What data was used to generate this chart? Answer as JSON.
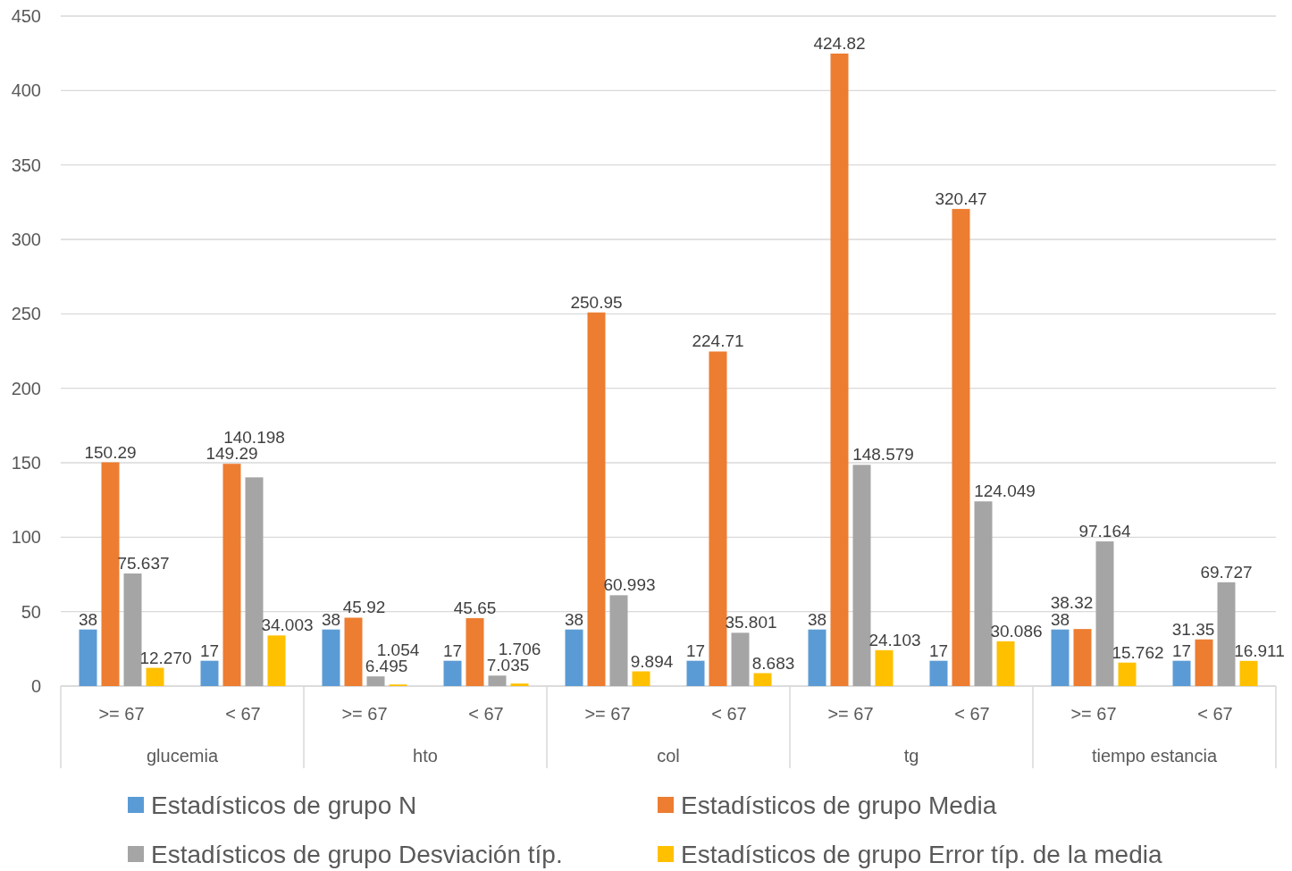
{
  "chart_data": {
    "type": "bar",
    "categories": [
      ">= 67",
      "< 67",
      ">= 67",
      "< 67",
      ">= 67",
      "< 67",
      ">= 67",
      "< 67",
      ">= 67",
      "< 67"
    ],
    "annotations": [
      "glucemia",
      "hto",
      "col",
      "tg",
      "tiempo estancia"
    ],
    "series": [
      {
        "name": "Estadísticos de grupo N",
        "color": "#5b9bd5",
        "values": [
          38,
          17,
          38,
          17,
          38,
          17,
          38,
          17,
          38,
          17
        ],
        "value_labels": [
          "38",
          "17",
          "38",
          "17",
          "38",
          "17",
          "38",
          "17",
          "38",
          "17"
        ]
      },
      {
        "name": "Estadísticos de grupo Media",
        "color": "#ed7d31",
        "values": [
          150.29,
          149.29,
          45.92,
          45.65,
          250.95,
          224.71,
          424.82,
          320.47,
          38.32,
          31.35
        ],
        "value_labels": [
          "150.29",
          "149.29",
          "45.92",
          "45.65",
          "250.95",
          "224.71",
          "424.82",
          "320.47",
          "38.32",
          "31.35"
        ]
      },
      {
        "name": "Estadísticos de grupo Desviación típ.",
        "color": "#a5a5a5",
        "values": [
          75.637,
          140.198,
          6.495,
          7.035,
          60.993,
          35.801,
          148.579,
          124.049,
          97.164,
          69.727
        ],
        "value_labels": [
          "75.637",
          "140.198",
          "6.495",
          "7.035",
          "60.993",
          "35.801",
          "148.579",
          "124.049",
          "97.164",
          "69.727"
        ]
      },
      {
        "name": "Estadísticos de grupo Error típ. de la media",
        "color": "#ffc000",
        "values": [
          12.27,
          34.003,
          1.054,
          1.706,
          9.894,
          8.683,
          24.103,
          30.086,
          15.762,
          16.911
        ],
        "value_labels": [
          "12.270",
          "34.003",
          "1.054",
          "1.706",
          "9.894",
          "8.683",
          "24.103",
          "30.086",
          "15.762",
          "16.911"
        ]
      }
    ],
    "ylim": [
      0,
      450
    ],
    "yticks": [
      0,
      50,
      100,
      150,
      200,
      250,
      300,
      350,
      400,
      450
    ],
    "grid": "y",
    "legend": "bottom"
  }
}
